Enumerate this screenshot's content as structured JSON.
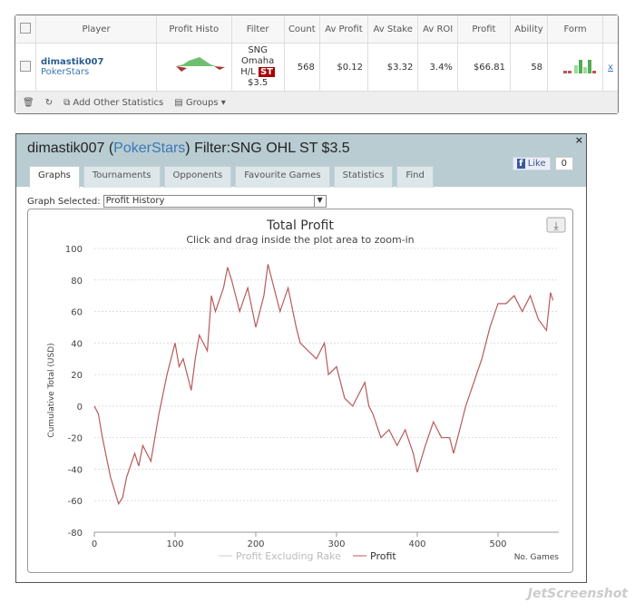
{
  "table": {
    "headers": [
      "Player",
      "Profit Histo",
      "Filter",
      "Count",
      "Av Profit",
      "Av Stake",
      "Av ROI",
      "Profit",
      "Ability",
      "Form"
    ],
    "row": {
      "player": "dimastik007",
      "site": "PokerStars",
      "filter_lines": [
        "SNG",
        "Omaha",
        "H/L",
        "$3.5"
      ],
      "filter_badge": "ST",
      "count": "568",
      "av_profit": "$0.12",
      "av_stake": "$3.32",
      "av_roi": "3.4%",
      "profit": "$66.81",
      "ability": "58",
      "remove": "x"
    },
    "footer": {
      "add_stats": "Add Other Statistics",
      "groups": "Groups ▾"
    }
  },
  "panel": {
    "title_player": "dimastik007 (",
    "title_site": "PokerStars",
    "title_rest": ") Filter:SNG OHL ST $3.5",
    "close": "×",
    "tabs": [
      "Graphs",
      "Tournaments",
      "Opponents",
      "Favourite Games",
      "Statistics",
      "Find"
    ],
    "like": "Like",
    "like_count": "0",
    "graph_label": "Graph Selected:",
    "graph_value": "Profit History"
  },
  "chart_data": {
    "type": "line",
    "title": "Total Profit",
    "subtitle": "Click and drag inside the plot area to zoom-in",
    "ylabel": "Cumulative Total (USD)",
    "xlabel": "No. Games",
    "xlim": [
      0,
      568
    ],
    "ylim": [
      -80,
      100
    ],
    "xticks": [
      0,
      100,
      200,
      300,
      400,
      500
    ],
    "yticks": [
      100,
      80,
      60,
      40,
      20,
      0,
      -20,
      -40,
      -60,
      -80
    ],
    "legend": [
      "Profit Excluding Rake",
      "Profit"
    ],
    "color": "#b85a5a",
    "series": [
      {
        "name": "Profit",
        "x": [
          0,
          5,
          10,
          20,
          30,
          35,
          40,
          50,
          55,
          60,
          70,
          80,
          90,
          100,
          105,
          110,
          120,
          125,
          130,
          140,
          145,
          150,
          160,
          165,
          170,
          180,
          190,
          200,
          210,
          215,
          220,
          230,
          240,
          250,
          255,
          265,
          275,
          285,
          290,
          300,
          310,
          320,
          335,
          340,
          345,
          355,
          365,
          375,
          385,
          395,
          400,
          410,
          420,
          430,
          440,
          445,
          455,
          460,
          470,
          480,
          490,
          500,
          510,
          520,
          530,
          540,
          550,
          560,
          565,
          568
        ],
        "y": [
          0,
          -5,
          -20,
          -45,
          -62,
          -58,
          -45,
          -30,
          -38,
          -25,
          -35,
          -5,
          20,
          40,
          25,
          30,
          10,
          30,
          45,
          35,
          70,
          60,
          75,
          88,
          80,
          60,
          75,
          50,
          70,
          90,
          80,
          60,
          75,
          50,
          40,
          35,
          30,
          40,
          20,
          25,
          5,
          0,
          15,
          0,
          -5,
          -20,
          -15,
          -25,
          -15,
          -30,
          -42,
          -25,
          -10,
          -20,
          -20,
          -30,
          -10,
          0,
          15,
          30,
          50,
          65,
          65,
          70,
          60,
          70,
          55,
          48,
          72,
          67
        ]
      }
    ]
  },
  "watermark": "JetScreenshot"
}
